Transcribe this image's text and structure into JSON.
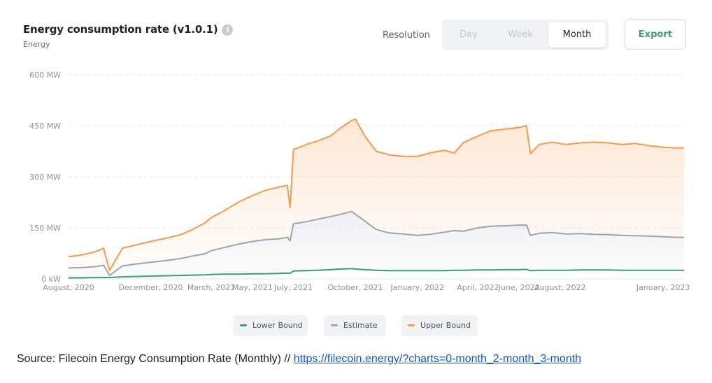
{
  "header": {
    "title": "Energy consumption rate (v1.0.1)",
    "subtitle": "Energy",
    "resolution_label": "Resolution",
    "resolution_options": [
      "Day",
      "Week",
      "Month"
    ],
    "resolution_selected": "Month",
    "export_label": "Export"
  },
  "source": {
    "prefix": "Source: Filecoin Energy Consumption Rate (Monthly) // ",
    "link": "https://filecoin.energy/?charts=0-month_2-month_3-month"
  },
  "colors": {
    "lower_bound": "#3c9a80",
    "estimate": "#9ea3ae",
    "upper_bound": "#f59a4c",
    "export_text": "#3c9a80"
  },
  "chart_data": {
    "type": "area",
    "title": "Energy consumption rate (v1.0.1)",
    "ylabel": "Energy",
    "ylim": [
      0,
      600
    ],
    "y_ticks": [
      {
        "value": 0,
        "label": "0 kW"
      },
      {
        "value": 150,
        "label": "150 MW"
      },
      {
        "value": 300,
        "label": "300 MW"
      },
      {
        "value": 450,
        "label": "450 MW"
      },
      {
        "value": 600,
        "label": "600 MW"
      }
    ],
    "x_ticks": [
      "August, 2020",
      "December, 2020",
      "March, 2021",
      "May, 2021",
      "July, 2021",
      "October, 2021",
      "January, 2022",
      "April, 2022",
      "June, 2022",
      "August, 2022",
      "January, 2023"
    ],
    "x_tick_values": [
      "2020-08-01",
      "2020-12-01",
      "2021-03-01",
      "2021-05-01",
      "2021-07-01",
      "2021-10-01",
      "2022-01-01",
      "2022-04-01",
      "2022-06-01",
      "2022-08-01",
      "2023-01-01"
    ],
    "xlim": [
      "2020-08-01",
      "2023-02-01"
    ],
    "grid": true,
    "legend_position": "bottom",
    "x": [
      "2020-08-01",
      "2020-08-20",
      "2020-09-10",
      "2020-09-22",
      "2020-10-01",
      "2020-10-20",
      "2020-11-10",
      "2020-12-01",
      "2020-12-20",
      "2021-01-15",
      "2021-02-01",
      "2021-02-20",
      "2021-03-01",
      "2021-03-20",
      "2021-04-10",
      "2021-05-01",
      "2021-05-20",
      "2021-06-10",
      "2021-06-22",
      "2021-06-26",
      "2021-07-01",
      "2021-07-20",
      "2021-08-05",
      "2021-08-25",
      "2021-09-10",
      "2021-09-25",
      "2021-10-01",
      "2021-10-15",
      "2021-11-01",
      "2021-11-20",
      "2021-12-10",
      "2022-01-01",
      "2022-01-20",
      "2022-02-10",
      "2022-02-25",
      "2022-03-10",
      "2022-04-01",
      "2022-04-20",
      "2022-05-10",
      "2022-06-01",
      "2022-06-12",
      "2022-06-18",
      "2022-07-01",
      "2022-07-20",
      "2022-08-10",
      "2022-09-01",
      "2022-09-20",
      "2022-10-10",
      "2022-11-01",
      "2022-11-20",
      "2022-12-10",
      "2023-01-01",
      "2023-01-20",
      "2023-02-01"
    ],
    "series": [
      {
        "name": "Lower Bound",
        "values": [
          3,
          3,
          4,
          4,
          4,
          6,
          7,
          8,
          9,
          10,
          11,
          12,
          13,
          14,
          14,
          15,
          15,
          16,
          17,
          16,
          23,
          24,
          25,
          27,
          29,
          30,
          29,
          27,
          25,
          24,
          24,
          24,
          24,
          24,
          25,
          25,
          26,
          26,
          27,
          27,
          28,
          24,
          25,
          25,
          25,
          26,
          26,
          26,
          25,
          25,
          25,
          25,
          25,
          25
        ]
      },
      {
        "name": "Estimate",
        "values": [
          32,
          33,
          36,
          40,
          10,
          38,
          44,
          49,
          53,
          60,
          67,
          74,
          83,
          92,
          102,
          110,
          115,
          118,
          122,
          112,
          162,
          168,
          175,
          183,
          190,
          198,
          190,
          170,
          145,
          135,
          132,
          128,
          131,
          137,
          142,
          140,
          150,
          155,
          156,
          158,
          158,
          128,
          134,
          136,
          132,
          133,
          131,
          130,
          128,
          127,
          126,
          124,
          122,
          122
        ]
      },
      {
        "name": "Upper Bound",
        "values": [
          65,
          70,
          80,
          90,
          25,
          90,
          100,
          110,
          118,
          130,
          145,
          165,
          180,
          200,
          225,
          245,
          260,
          270,
          275,
          210,
          380,
          395,
          405,
          420,
          445,
          465,
          470,
          420,
          375,
          365,
          360,
          360,
          370,
          378,
          370,
          400,
          420,
          435,
          440,
          445,
          450,
          368,
          395,
          402,
          395,
          400,
          402,
          400,
          395,
          398,
          392,
          387,
          385,
          385
        ]
      }
    ]
  }
}
